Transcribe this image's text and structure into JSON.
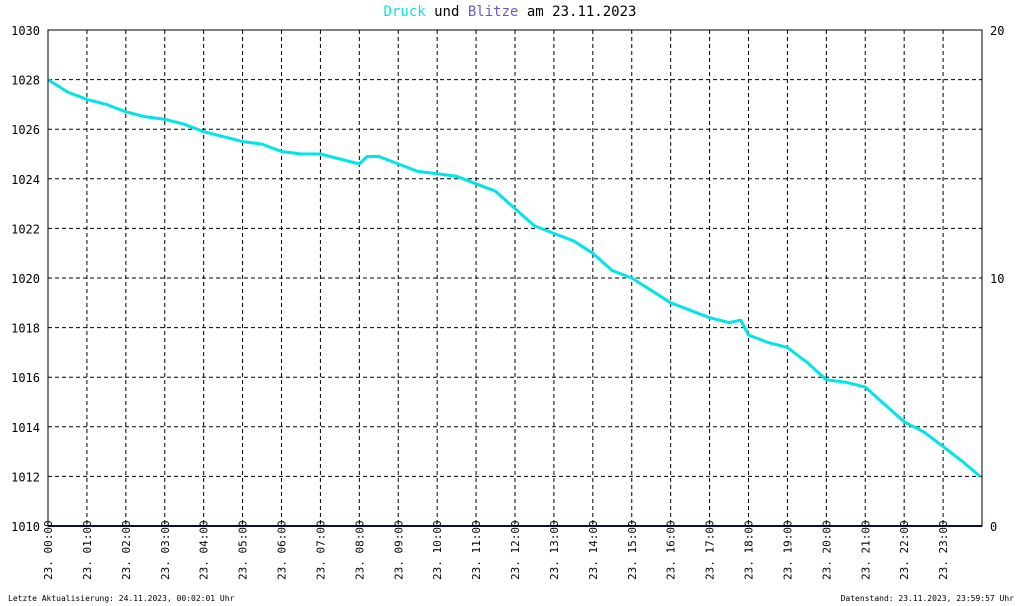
{
  "chart_data": {
    "type": "line",
    "title": {
      "series1": "Druck",
      "joiner": "und",
      "series2": "Blitze",
      "suffix": "am 23.11.2023"
    },
    "x_tick_labels": [
      "23. 00:00",
      "23. 01:00",
      "23. 02:00",
      "23. 03:00",
      "23. 04:00",
      "23. 05:00",
      "23. 06:00",
      "23. 07:00",
      "23. 08:00",
      "23. 09:00",
      "23. 10:00",
      "23. 11:00",
      "23. 12:00",
      "23. 13:00",
      "23. 14:00",
      "23. 15:00",
      "23. 16:00",
      "23. 17:00",
      "23. 18:00",
      "23. 19:00",
      "23. 20:00",
      "23. 21:00",
      "23. 22:00",
      "23. 23:00"
    ],
    "xlim": [
      0,
      24
    ],
    "y_left": {
      "lim": [
        1010,
        1030
      ],
      "ticks": [
        1010,
        1012,
        1014,
        1016,
        1018,
        1020,
        1022,
        1024,
        1026,
        1028,
        1030
      ]
    },
    "y_right": {
      "lim": [
        0,
        20
      ],
      "ticks": [
        0,
        10,
        20
      ]
    },
    "grid": true,
    "series": [
      {
        "name": "Druck",
        "color": "#00e5e5",
        "axis": "left",
        "x": [
          0,
          0.5,
          1,
          1.5,
          2,
          2.5,
          3,
          3.5,
          4,
          4.5,
          5,
          5.5,
          6,
          6.5,
          7,
          7.5,
          8,
          8.2,
          8.5,
          9,
          9.5,
          10,
          10.5,
          11,
          11.5,
          12,
          12.5,
          13,
          13.5,
          14,
          14.5,
          15,
          15.5,
          16,
          16.5,
          17,
          17.5,
          17.8,
          18,
          18.5,
          19,
          19.5,
          20,
          20.5,
          21,
          21.5,
          22,
          22.5,
          23,
          23.5,
          23.95
        ],
        "y": [
          1028.0,
          1027.5,
          1027.2,
          1027.0,
          1026.7,
          1026.5,
          1026.4,
          1026.2,
          1025.9,
          1025.7,
          1025.5,
          1025.4,
          1025.1,
          1025.0,
          1025.0,
          1024.8,
          1024.6,
          1024.9,
          1024.9,
          1024.6,
          1024.3,
          1024.2,
          1024.1,
          1023.8,
          1023.5,
          1022.8,
          1022.1,
          1021.8,
          1021.5,
          1021.0,
          1020.3,
          1020.0,
          1019.5,
          1019.0,
          1018.7,
          1018.4,
          1018.2,
          1018.3,
          1017.7,
          1017.4,
          1017.2,
          1016.6,
          1015.9,
          1015.8,
          1015.6,
          1014.9,
          1014.2,
          1013.8,
          1013.2,
          1012.6,
          1012.0
        ]
      },
      {
        "name": "Blitze",
        "color": "#1a1a80",
        "axis": "right",
        "x": [
          0,
          24
        ],
        "y": [
          0,
          0
        ]
      }
    ]
  },
  "colors": {
    "druck_title": "#00e5e5",
    "blitze_title": "#6a5acd",
    "grid": "#000000"
  },
  "footer": {
    "left": "Letzte Aktualisierung: 24.11.2023, 00:02:01 Uhr",
    "right": "Datenstand: 23.11.2023, 23:59:57 Uhr"
  }
}
